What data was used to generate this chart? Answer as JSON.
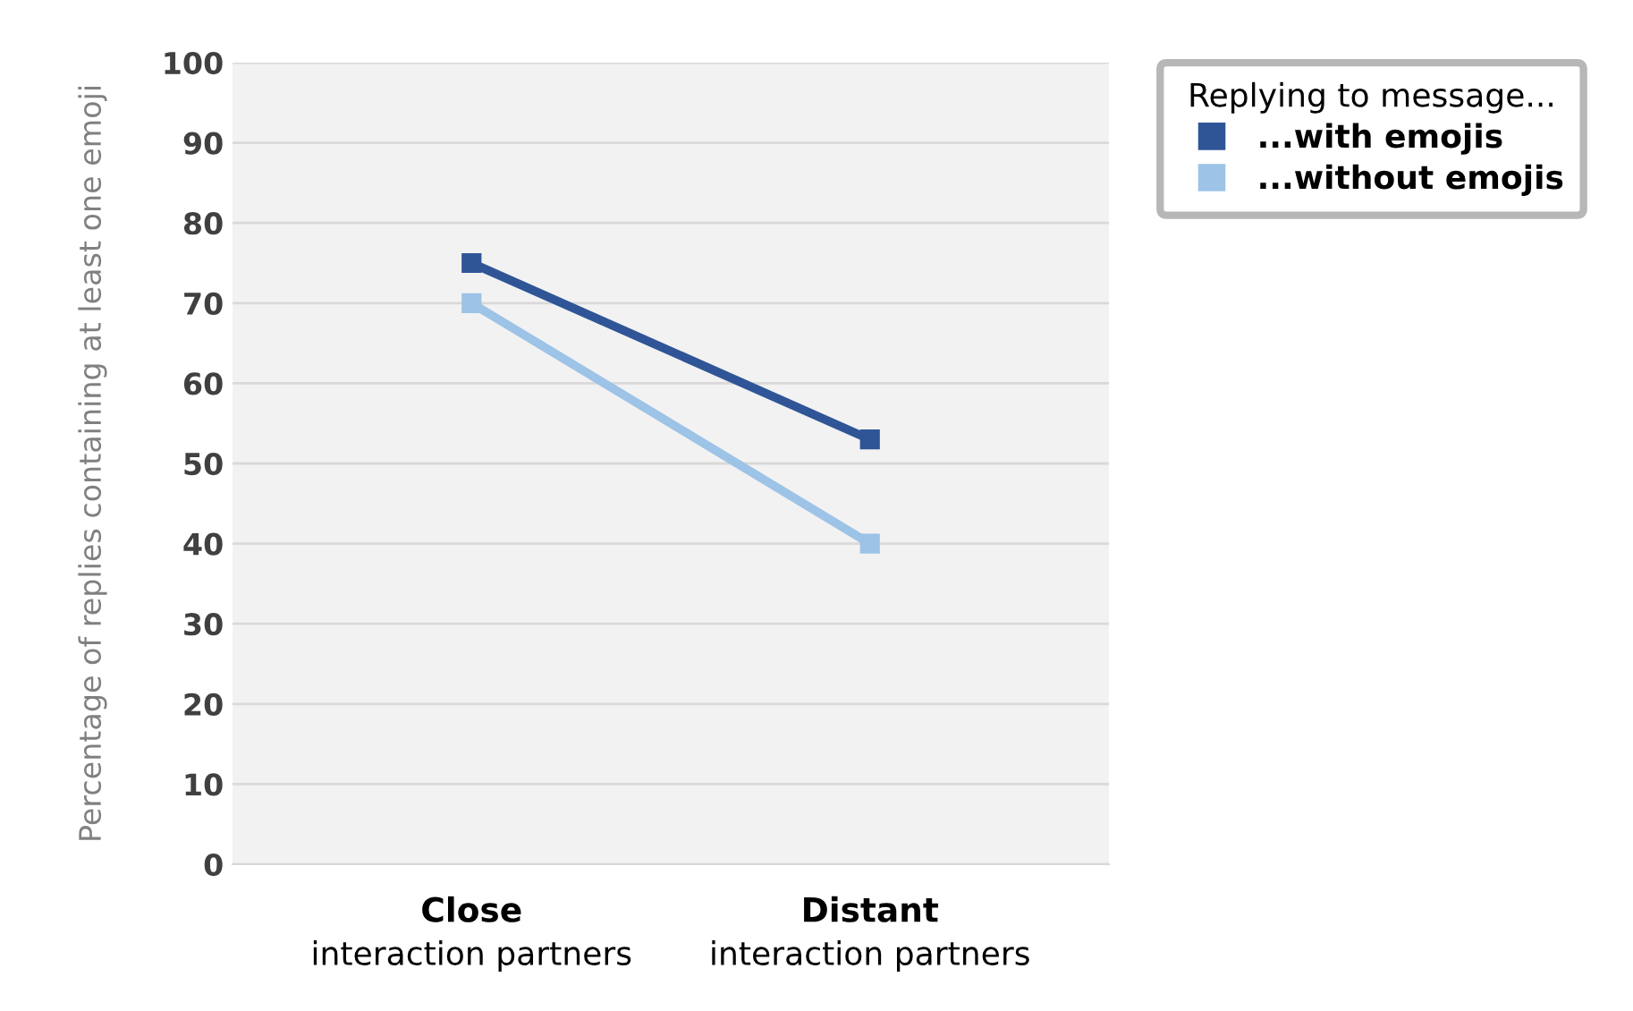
{
  "chart_data": {
    "type": "line",
    "ylabel": "Percentage of replies containing at least one emoji",
    "legend_title": "Replying to message...",
    "categories": [
      "Close\ninteraction partners",
      "Distant\ninteraction partners"
    ],
    "series": [
      {
        "name": "...with emojis",
        "color": "#2f5597",
        "values": [
          75,
          53
        ]
      },
      {
        "name": "...without emojis",
        "color": "#9dc3e6",
        "values": [
          70,
          40
        ]
      }
    ],
    "ylim": [
      0,
      100
    ],
    "yticks": [
      0,
      10,
      20,
      30,
      40,
      50,
      60,
      70,
      80,
      90,
      100
    ],
    "grid": "y",
    "legend": "top right",
    "marker": "square",
    "line_style": "solid"
  }
}
